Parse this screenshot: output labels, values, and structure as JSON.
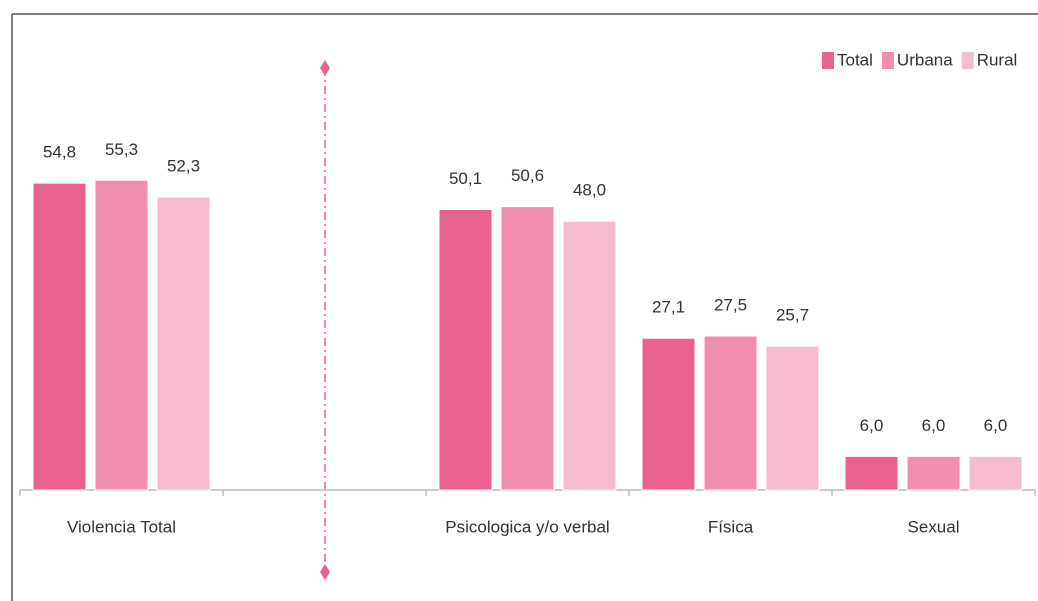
{
  "chart_data": {
    "type": "bar",
    "categories": [
      "Violencia Total",
      null,
      "Psicologica y/o verbal",
      "Física",
      "Sexual"
    ],
    "series": [
      {
        "name": "Total",
        "color": "#e8628d",
        "values": [
          54.8,
          null,
          50.1,
          27.1,
          6.0
        ],
        "value_labels": [
          "54,8",
          null,
          "50,1",
          "27,1",
          "6,0"
        ]
      },
      {
        "name": "Urbana",
        "color": "#f08db1",
        "values": [
          55.3,
          null,
          50.6,
          27.5,
          6.0
        ],
        "value_labels": [
          "55,3",
          null,
          "50,6",
          "27,5",
          "6,0"
        ]
      },
      {
        "name": "Rural",
        "color": "#f5bbd1",
        "values": [
          52.3,
          null,
          48.0,
          25.7,
          6.0
        ],
        "value_labels": [
          "52,3",
          null,
          "48,0",
          "25,7",
          "6,0"
        ]
      }
    ],
    "ylim": [
      0,
      60
    ],
    "legend": "top-right"
  }
}
